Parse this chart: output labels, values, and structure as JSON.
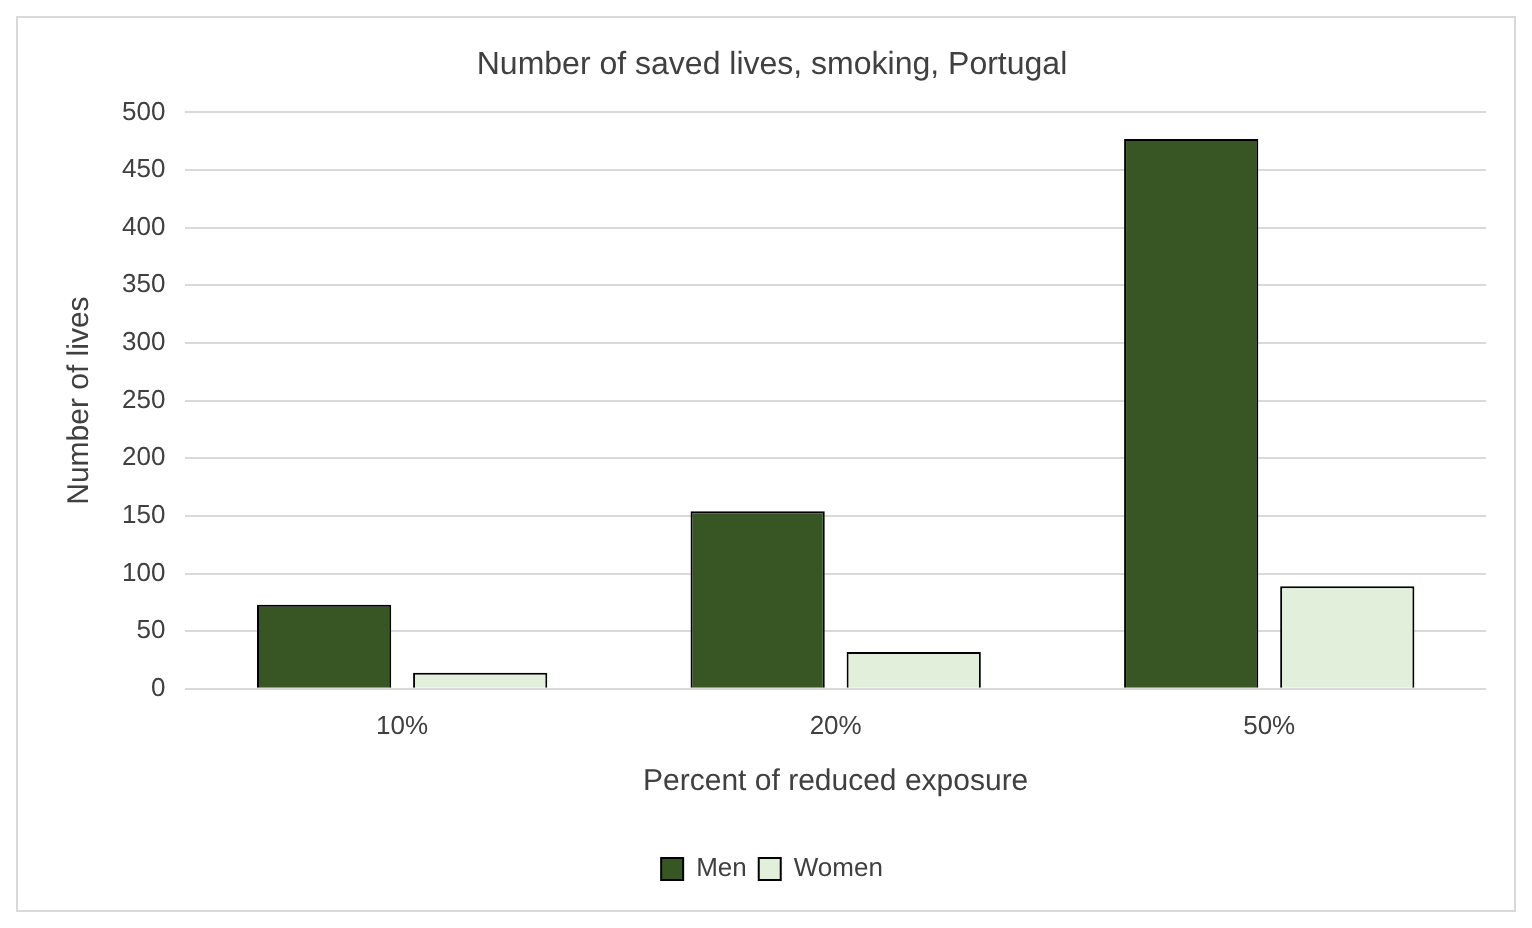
{
  "chart_data": {
    "type": "bar",
    "title": "Number of saved lives, smoking, Portugal",
    "xlabel": "Percent of reduced exposure",
    "ylabel": "Number of lives",
    "categories": [
      "10%",
      "20%",
      "50%"
    ],
    "series": [
      {
        "name": "Men",
        "color": "#375623",
        "values": [
          73,
          154,
          477
        ]
      },
      {
        "name": "Women",
        "color": "#e2efda",
        "values": [
          14,
          32,
          89
        ]
      }
    ],
    "ylim": [
      0,
      500
    ],
    "yticks": [
      0,
      50,
      100,
      150,
      200,
      250,
      300,
      350,
      400,
      450,
      500
    ],
    "grid": "y",
    "legend": "bottom"
  }
}
